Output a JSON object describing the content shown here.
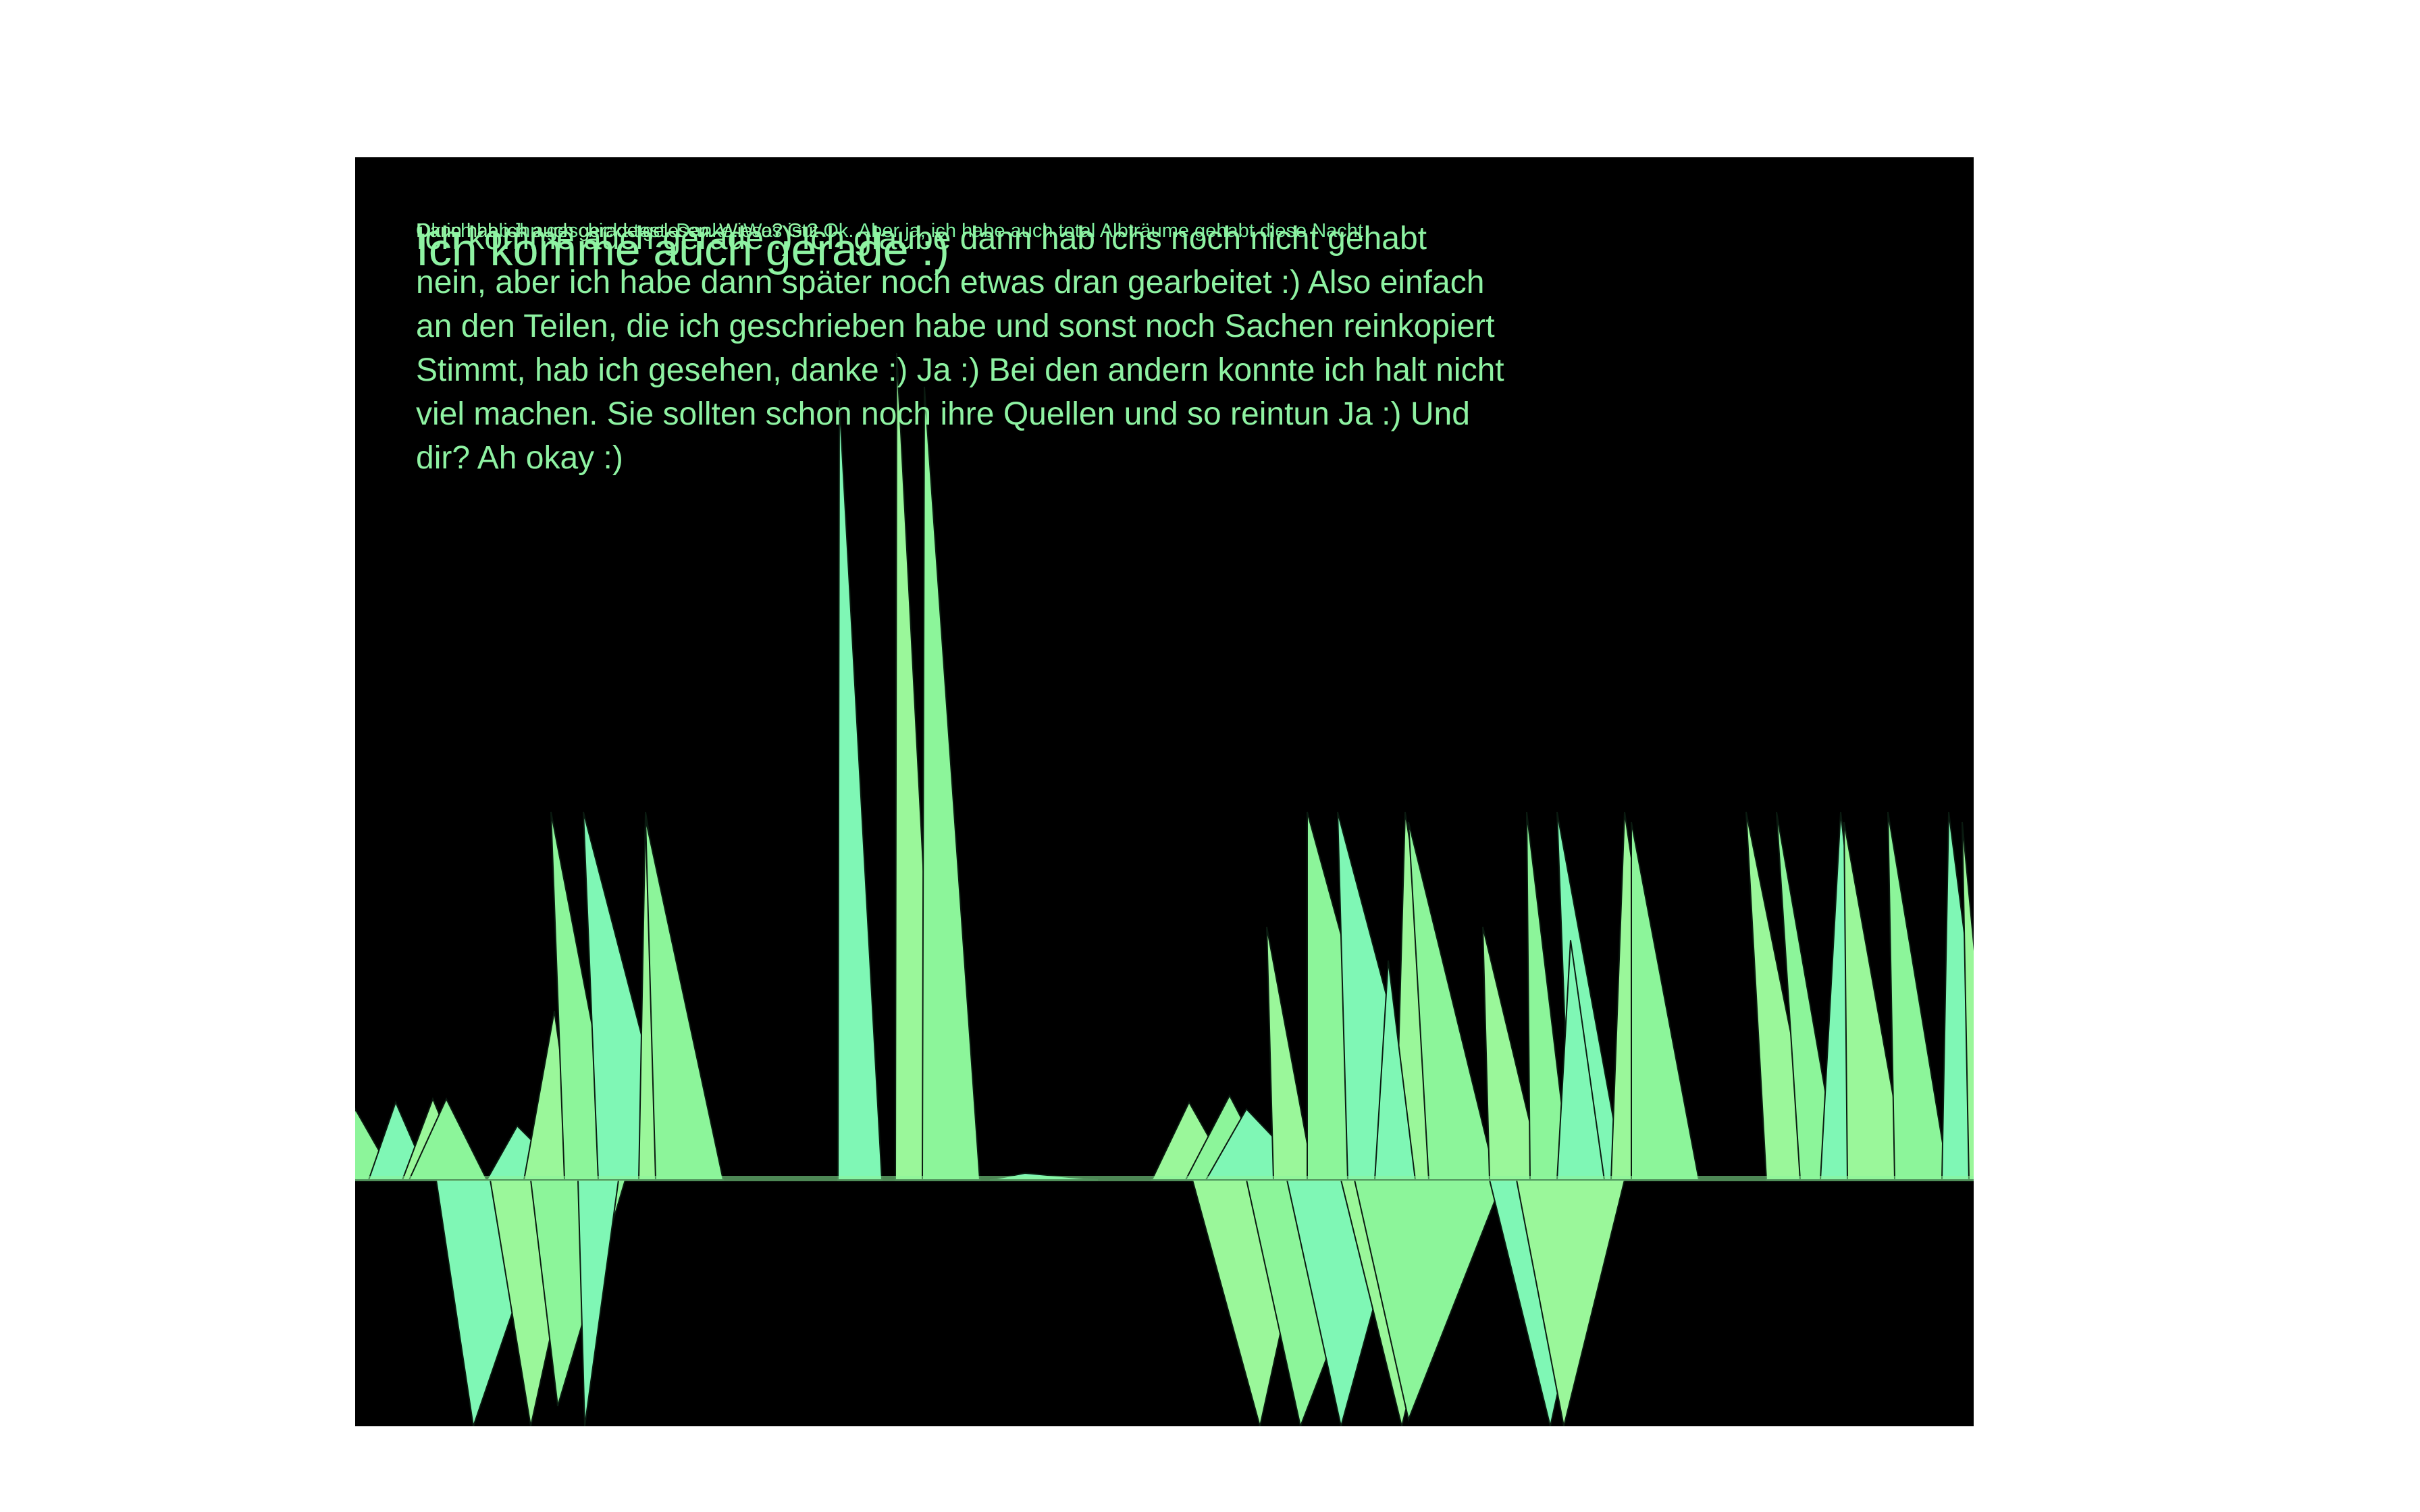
{
  "canvas": {
    "background": "#000000",
    "page_background": "#ffffff",
    "fill_colors": [
      "#8cf59a",
      "#7ff7b5",
      "#9af79a"
    ],
    "stroke_color": "#0a1a10"
  },
  "texts": {
    "overlap_small_a": "Ok ich hab ihn geschickt test. Danke. Was ist? Ok. Aber ja, ich habe auch total Albträume gehabt diese Nacht",
    "overlap_small_b": "Dann hab ich auch gerade gelesen. Wieso? Gut",
    "overlap_big": "Ich komme auch gerade :)",
    "paragraph_lines": [
      "Ich komme auch gerade :) Ich glaube dann hab ichs noch nicht gehabt",
      "nein, aber ich habe dann später noch etwas dran gearbeitet :) Also einfach",
      "an den Teilen, die ich geschrieben habe und sonst noch Sachen reinkopiert",
      "Stimmt, hab ich gesehen, danke :) Ja :) Bei den andern konnte ich halt nicht",
      "viel machen. Sie sollten schon noch ihre Quellen und so reintun Ja :) Und",
      "dir? Ah okay :)"
    ]
  }
}
